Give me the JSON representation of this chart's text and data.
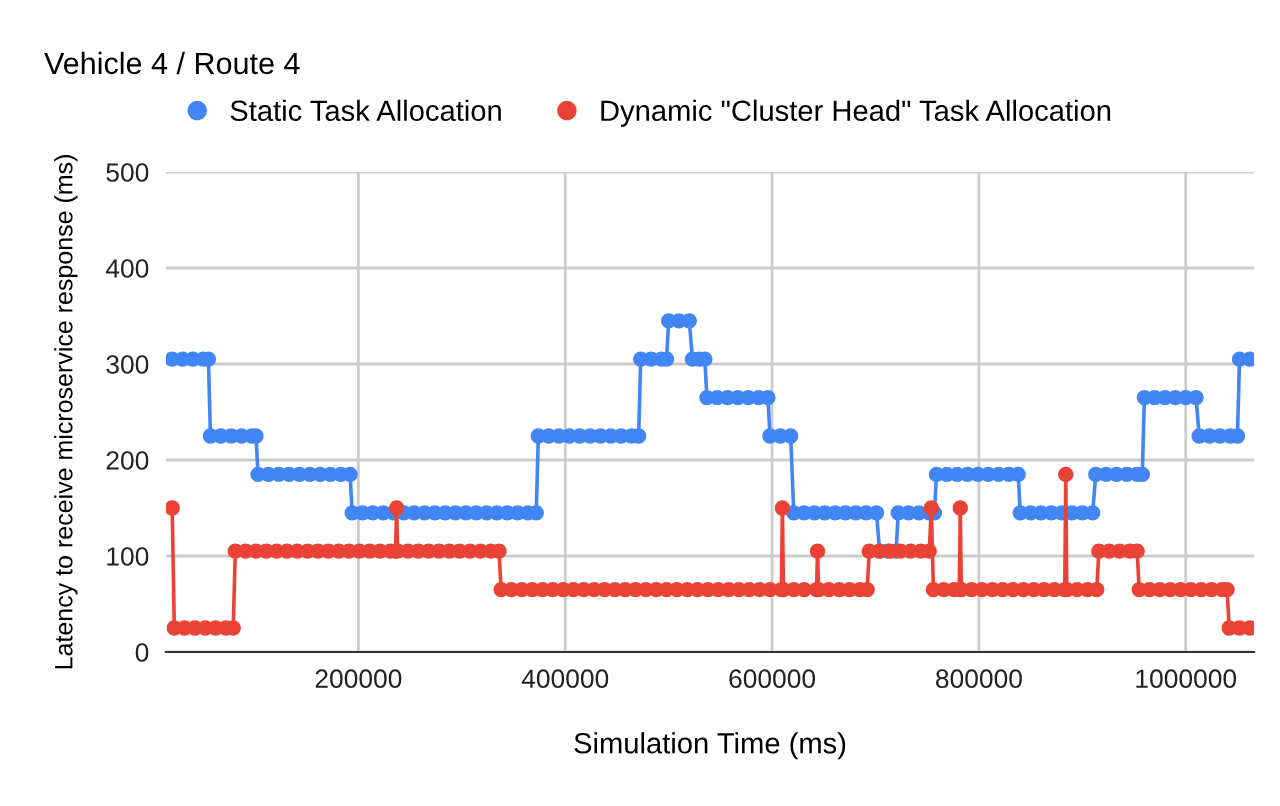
{
  "chart_data": {
    "type": "line",
    "title": "Vehicle 4 / Route 4",
    "xlabel": "Simulation Time (ms)",
    "ylabel": "Latency to receive microservice response (ms)",
    "xlim": [
      14000,
      1066000
    ],
    "xticks": [
      200000,
      400000,
      600000,
      800000,
      1000000
    ],
    "ylim": [
      0,
      500
    ],
    "yticks": [
      0,
      100,
      200,
      300,
      400,
      500
    ],
    "grid": true,
    "legend": "top",
    "marker": "circle",
    "line_style": "solid",
    "series": [
      {
        "name": "Static Task Allocation",
        "color": "#4285f4",
        "x": [
          20000,
          30000,
          40000,
          50000,
          55000,
          57000,
          67000,
          77000,
          87000,
          97000,
          101000,
          103000,
          113000,
          123000,
          133000,
          143000,
          153000,
          163000,
          173000,
          183000,
          192000,
          194000,
          204000,
          214000,
          224000,
          234000,
          244000,
          254000,
          264000,
          274000,
          284000,
          294000,
          304000,
          314000,
          324000,
          334000,
          344000,
          354000,
          364000,
          372000,
          374000,
          384000,
          394000,
          404000,
          414000,
          424000,
          434000,
          444000,
          454000,
          464000,
          471000,
          473000,
          483000,
          493000,
          498000,
          500000,
          510000,
          520000,
          523000,
          530000,
          535000,
          537000,
          547000,
          557000,
          567000,
          577000,
          587000,
          596000,
          598000,
          608000,
          618000,
          621000,
          631000,
          641000,
          651000,
          661000,
          671000,
          681000,
          691000,
          701000,
          704000,
          712000,
          720000,
          722000,
          732000,
          742000,
          752000,
          757000,
          759000,
          769000,
          779000,
          789000,
          799000,
          809000,
          819000,
          829000,
          838000,
          840000,
          850000,
          860000,
          870000,
          880000,
          890000,
          900000,
          910000,
          913000,
          923000,
          933000,
          943000,
          953000,
          958000,
          960000,
          970000,
          980000,
          990000,
          1000000,
          1010000,
          1013000,
          1023000,
          1033000,
          1043000,
          1050000,
          1052000,
          1062000
        ],
        "values": [
          305,
          305,
          305,
          305,
          305,
          225,
          225,
          225,
          225,
          225,
          225,
          185,
          185,
          185,
          185,
          185,
          185,
          185,
          185,
          185,
          185,
          145,
          145,
          145,
          145,
          145,
          145,
          145,
          145,
          145,
          145,
          145,
          145,
          145,
          145,
          145,
          145,
          145,
          145,
          145,
          225,
          225,
          225,
          225,
          225,
          225,
          225,
          225,
          225,
          225,
          225,
          305,
          305,
          305,
          305,
          345,
          345,
          345,
          305,
          305,
          305,
          265,
          265,
          265,
          265,
          265,
          265,
          265,
          225,
          225,
          225,
          145,
          145,
          145,
          145,
          145,
          145,
          145,
          145,
          145,
          105,
          105,
          105,
          145,
          145,
          145,
          145,
          145,
          185,
          185,
          185,
          185,
          185,
          185,
          185,
          185,
          185,
          145,
          145,
          145,
          145,
          145,
          145,
          145,
          145,
          185,
          185,
          185,
          185,
          185,
          185,
          265,
          265,
          265,
          265,
          265,
          265,
          225,
          225,
          225,
          225,
          225,
          305,
          305
        ]
      },
      {
        "name": "Dynamic \"Cluster Head\" Task Allocation",
        "color": "#ea4335",
        "x": [
          20000,
          22000,
          32000,
          42000,
          52000,
          62000,
          72000,
          79000,
          81000,
          91000,
          101000,
          111000,
          121000,
          131000,
          141000,
          151000,
          161000,
          171000,
          181000,
          191000,
          201000,
          211000,
          221000,
          231000,
          236000,
          237000,
          238000,
          248000,
          258000,
          268000,
          278000,
          288000,
          298000,
          308000,
          318000,
          328000,
          336000,
          338000,
          348000,
          358000,
          368000,
          378000,
          388000,
          398000,
          408000,
          418000,
          428000,
          438000,
          448000,
          458000,
          468000,
          478000,
          488000,
          498000,
          508000,
          518000,
          528000,
          538000,
          548000,
          558000,
          568000,
          578000,
          588000,
          598000,
          609000,
          610000,
          611000,
          621000,
          631000,
          643000,
          644000,
          645000,
          655000,
          665000,
          675000,
          685000,
          692000,
          694000,
          704000,
          714000,
          724000,
          734000,
          744000,
          752000,
          754000,
          756000,
          766000,
          776000,
          781000,
          782000,
          783000,
          793000,
          803000,
          813000,
          823000,
          833000,
          843000,
          853000,
          863000,
          873000,
          883000,
          884000,
          885000,
          895000,
          905000,
          914000,
          916000,
          926000,
          936000,
          946000,
          953000,
          955000,
          965000,
          975000,
          985000,
          995000,
          1005000,
          1015000,
          1025000,
          1035000,
          1040000,
          1042000,
          1052000,
          1062000
        ],
        "values": [
          150,
          25,
          25,
          25,
          25,
          25,
          25,
          25,
          105,
          105,
          105,
          105,
          105,
          105,
          105,
          105,
          105,
          105,
          105,
          105,
          105,
          105,
          105,
          105,
          105,
          150,
          105,
          105,
          105,
          105,
          105,
          105,
          105,
          105,
          105,
          105,
          105,
          65,
          65,
          65,
          65,
          65,
          65,
          65,
          65,
          65,
          65,
          65,
          65,
          65,
          65,
          65,
          65,
          65,
          65,
          65,
          65,
          65,
          65,
          65,
          65,
          65,
          65,
          65,
          65,
          150,
          65,
          65,
          65,
          65,
          105,
          65,
          65,
          65,
          65,
          65,
          65,
          105,
          105,
          105,
          105,
          105,
          105,
          105,
          150,
          65,
          65,
          65,
          65,
          150,
          65,
          65,
          65,
          65,
          65,
          65,
          65,
          65,
          65,
          65,
          65,
          185,
          65,
          65,
          65,
          65,
          105,
          105,
          105,
          105,
          105,
          65,
          65,
          65,
          65,
          65,
          65,
          65,
          65,
          65,
          65,
          25,
          25,
          25
        ]
      }
    ]
  }
}
